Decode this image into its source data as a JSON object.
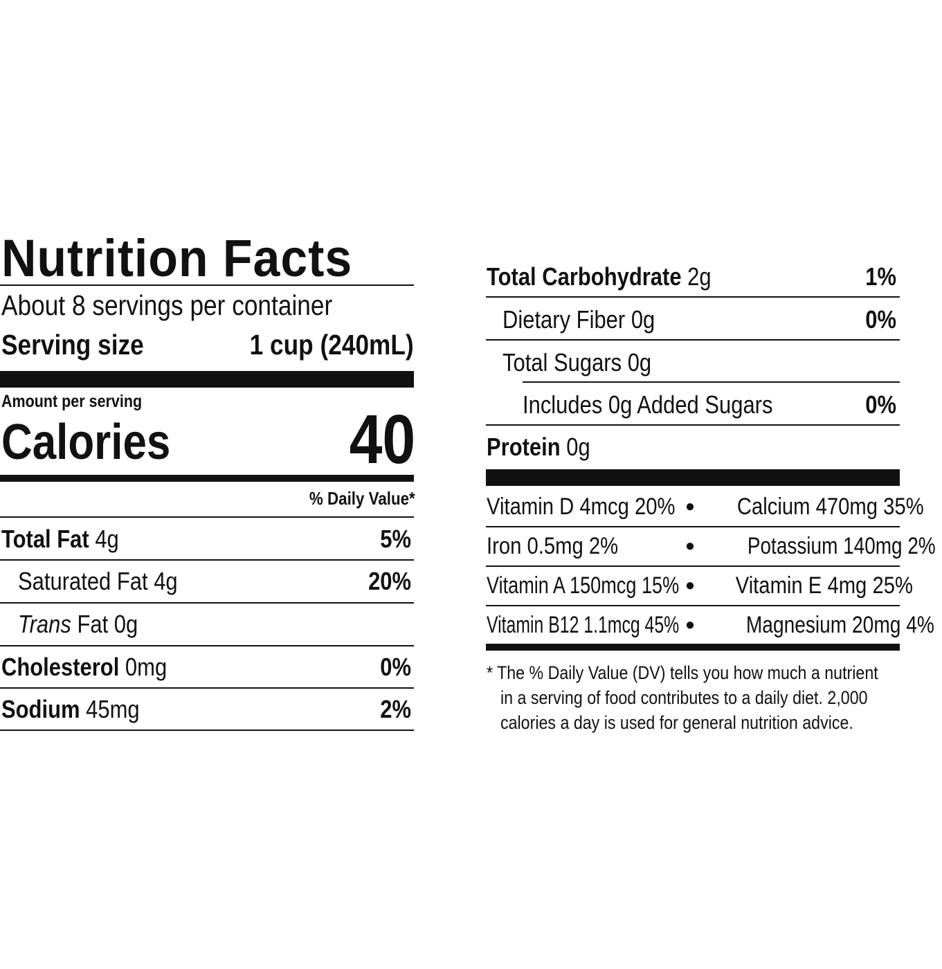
{
  "title": "Nutrition Facts",
  "servings_per_container": "About 8 servings per container",
  "serving_size": {
    "label": "Serving size",
    "value": "1 cup (240mL)"
  },
  "amount_per_serving": "Amount per serving",
  "calories": {
    "label": "Calories",
    "value": "40"
  },
  "daily_value_header": "% Daily Value*",
  "left_rows": [
    {
      "name": "Total Fat",
      "amount": "4g",
      "dv": "5%",
      "bold": true
    },
    {
      "name": "Saturated Fat",
      "amount": "4g",
      "dv": "20%"
    },
    {
      "name_italic": "Trans",
      "name": "Fat",
      "amount": "0g",
      "dv": ""
    },
    {
      "name": "Cholesterol",
      "amount": "0mg",
      "dv": "0%",
      "bold": true
    },
    {
      "name": "Sodium",
      "amount": "45mg",
      "dv": "2%",
      "bold": true
    }
  ],
  "right_rows": [
    {
      "name": "Total Carbohydrate",
      "amount": "2g",
      "dv": "1%"
    },
    {
      "name": "Dietary Fiber",
      "amount": "0g",
      "dv": "0%"
    },
    {
      "name": "Total Sugars",
      "amount": "0g",
      "dv": ""
    },
    {
      "name": "Includes 0g Added Sugars",
      "amount": "",
      "dv": "0%"
    },
    {
      "name": "Protein",
      "amount": "0g",
      "dv": ""
    }
  ],
  "micronutrients": [
    {
      "left": "Vitamin D 4mcg 20%",
      "right": "Calcium 470mg 35%"
    },
    {
      "left": "Iron 0.5mg 2%",
      "right": "Potassium 140mg 2%"
    },
    {
      "left": "Vitamin A 150mcg 15%",
      "right": "Vitamin E 4mg 25%"
    },
    {
      "left": "Vitamin B12 1.1mcg 45%",
      "right": "Magnesium 20mg 4%"
    }
  ],
  "bullet": "●",
  "footnote": [
    "* The % Daily Value (DV) tells you how much a nutrient",
    "in a serving of food contributes to a daily diet. 2,000",
    "calories a day is used for general nutrition advice."
  ]
}
